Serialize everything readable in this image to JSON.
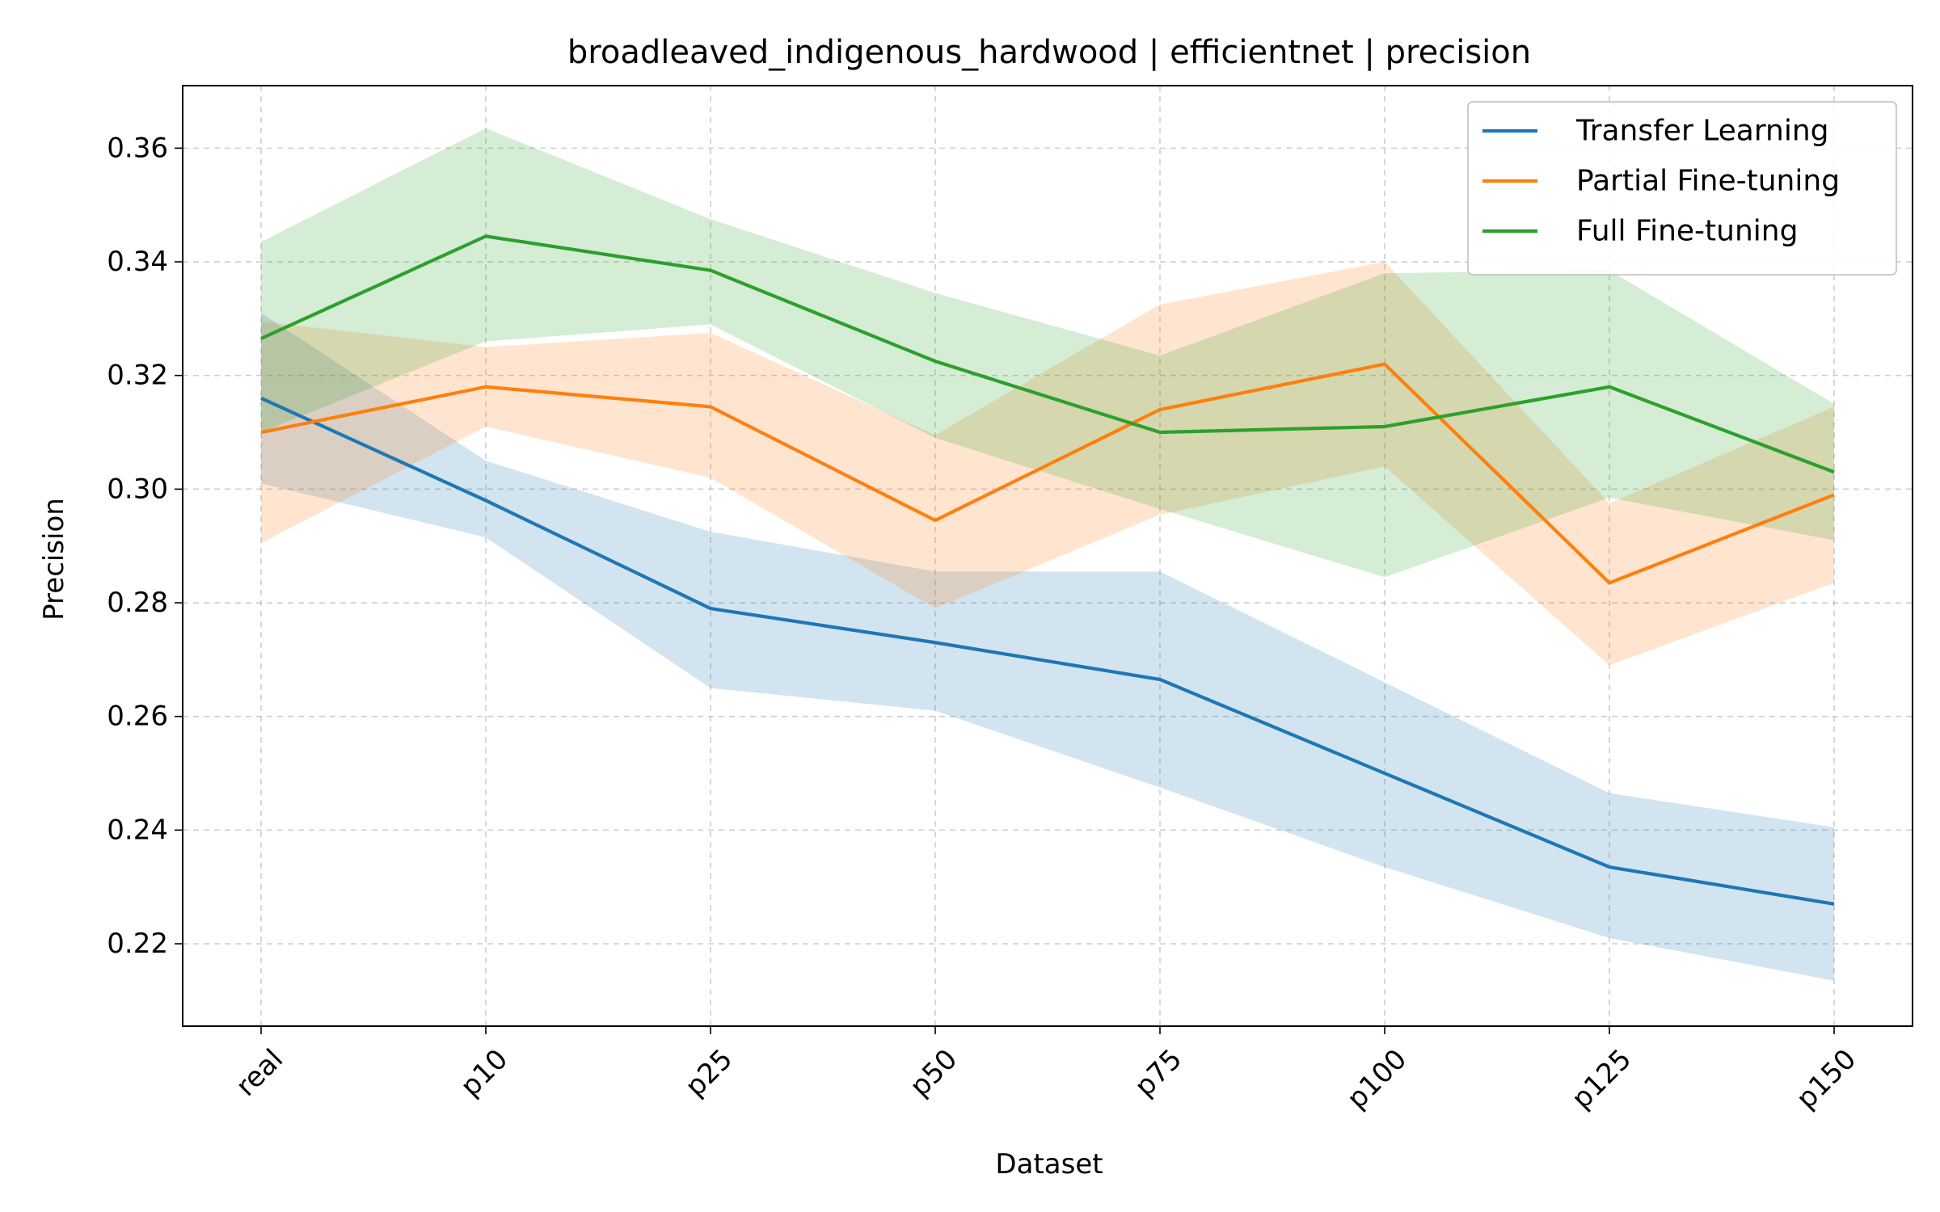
{
  "chart_data": {
    "type": "line",
    "title": "broadleaved_indigenous_hardwood | efficientnet | precision",
    "xlabel": "Dataset",
    "ylabel": "Precision",
    "categories": [
      "real",
      "p10",
      "p25",
      "p50",
      "p75",
      "p100",
      "p125",
      "p150"
    ],
    "ylim": [
      0.2055,
      0.371
    ],
    "yticks": [
      "0.22",
      "0.24",
      "0.26",
      "0.28",
      "0.30",
      "0.32",
      "0.34",
      "0.36"
    ],
    "grid": true,
    "legend_position": "top-right",
    "series": [
      {
        "name": "Transfer Learning",
        "color": "#1f77b4",
        "values": [
          0.316,
          0.298,
          0.279,
          0.273,
          0.2665,
          0.25,
          0.2335,
          0.227
        ],
        "lower": [
          0.301,
          0.2915,
          0.265,
          0.261,
          0.2475,
          0.2335,
          0.221,
          0.2135
        ],
        "upper": [
          0.331,
          0.305,
          0.2925,
          0.2855,
          0.2855,
          0.266,
          0.2465,
          0.2405
        ]
      },
      {
        "name": "Partial Fine-tuning",
        "color": "#ff7f0e",
        "values": [
          0.31,
          0.318,
          0.3145,
          0.2945,
          0.314,
          0.322,
          0.2835,
          0.299
        ],
        "lower": [
          0.2905,
          0.311,
          0.302,
          0.279,
          0.2955,
          0.304,
          0.269,
          0.2835
        ],
        "upper": [
          0.3295,
          0.325,
          0.3275,
          0.3095,
          0.3325,
          0.34,
          0.2975,
          0.3145
        ]
      },
      {
        "name": "Full Fine-tuning",
        "color": "#2ca02c",
        "values": [
          0.3265,
          0.3445,
          0.3385,
          0.3225,
          0.31,
          0.311,
          0.318,
          0.303
        ],
        "lower": [
          0.31,
          0.326,
          0.329,
          0.309,
          0.2965,
          0.2845,
          0.2985,
          0.291
        ],
        "upper": [
          0.3435,
          0.3635,
          0.3475,
          0.3345,
          0.3235,
          0.338,
          0.3385,
          0.315
        ]
      }
    ]
  }
}
